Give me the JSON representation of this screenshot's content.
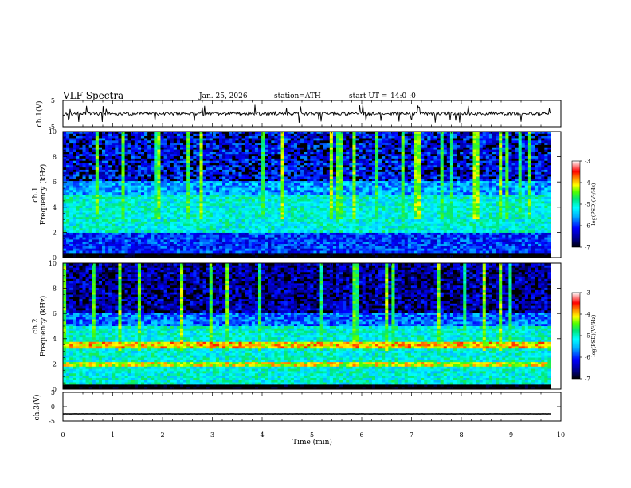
{
  "header": {
    "title": "VLF Spectra",
    "date": "Jan. 25, 2026",
    "station": "station=ATH",
    "start": "start UT =",
    "start_time": "14:0 :0"
  },
  "chart_data": [
    {
      "type": "line",
      "panel": "ch1-waveform",
      "ylabel": "ch.1(V)",
      "ylim": [
        -5,
        5
      ],
      "yticks": [
        "5",
        "-5"
      ],
      "xlim": [
        0,
        10
      ],
      "series": [
        {
          "color": "#000000",
          "baseline": 0,
          "typical_amplitude": 1
        }
      ],
      "grid": false
    },
    {
      "type": "heatmap",
      "panel": "ch1-spectrogram",
      "ylabel": "ch.1\nFrequency (kHz)",
      "ylabel_line1": "ch.1",
      "ylabel_line2": "Frequency (kHz)",
      "ylim": [
        0,
        10
      ],
      "yticks": [
        "0",
        "2",
        "4",
        "6",
        "8",
        "10"
      ],
      "xlim": [
        0,
        10
      ],
      "data_end_min": 9.8,
      "color_range": [
        -7,
        -3
      ],
      "colorbar_label": "log(PSD)(V²/Hz)",
      "colorbar_ticks": [
        "-3",
        "-4",
        "-5",
        "-6",
        "-7"
      ],
      "grid": false
    },
    {
      "type": "heatmap",
      "panel": "ch2-spectrogram",
      "ylabel": "ch.2\nFrequency (kHz)",
      "ylabel_line1": "ch.2",
      "ylabel_line2": "Frequency (kHz)",
      "ylim": [
        0,
        10
      ],
      "yticks": [
        "0",
        "2",
        "4",
        "6",
        "8",
        "10"
      ],
      "xlim": [
        0,
        10
      ],
      "data_end_min": 9.8,
      "color_range": [
        -7,
        -3
      ],
      "colorbar_label": "log(PSD)(V²/Hz)",
      "colorbar_ticks": [
        "-3",
        "-4",
        "-5",
        "-6",
        "-7"
      ],
      "grid": false
    },
    {
      "type": "line",
      "panel": "ch3-waveform",
      "ylabel": "ch.3(V)",
      "ylim": [
        -5,
        5
      ],
      "yticks": [
        "5",
        "0",
        "-5"
      ],
      "xlim": [
        0,
        10
      ],
      "xlabel": "Time (min)",
      "xticks": [
        "0",
        "1",
        "2",
        "3",
        "4",
        "5",
        "6",
        "7",
        "8",
        "9",
        "10"
      ],
      "series": [
        {
          "color": "#000000",
          "baseline": -2.5,
          "typical_amplitude": 0.2
        }
      ],
      "grid": false
    }
  ]
}
